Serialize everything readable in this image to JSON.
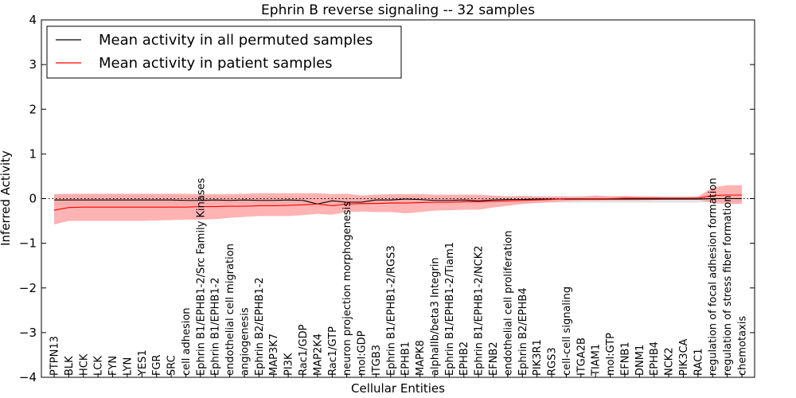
{
  "chart_data": {
    "type": "line",
    "title": "Ephrin B reverse signaling -- 32 samples",
    "xlabel": "Cellular Entities",
    "ylabel": "Inferred Activity",
    "ylim": [
      -4,
      4
    ],
    "yticks": [
      -4,
      -3,
      -2,
      -1,
      0,
      1,
      2,
      3,
      4
    ],
    "ytick_labels": [
      "−4",
      "−3",
      "−2",
      "−1",
      "0",
      "1",
      "2",
      "3",
      "4"
    ],
    "legend_position": "top-left",
    "categories": [
      "PTPN13",
      "BLK",
      "HCK",
      "LCK",
      "FYN",
      "LYN",
      "YES1",
      "FGR",
      "SRC",
      "cell adhesion",
      "Ephrin B1/EPHB1-2/Src Family Kinases",
      "Ephrin B1/EPHB1-2",
      "endothelial cell migration",
      "angiogenesis",
      "Ephrin B2/EPHB1-2",
      "MAP3K7",
      "PI3K",
      "Rac1/GDP",
      "MAP2K4",
      "Rac1/GTP",
      "neuron projection morphogenesis",
      "mol:GDP",
      "ITGB3",
      "Ephrin B1/EPHB1-2/RGS3",
      "EPHB1",
      "MAPK8",
      "alphaIIb/beta3 Integrin",
      "Ephrin B1/EPHB1-2/Tiam1",
      "EPHB2",
      "Ephrin B1/EPHB1-2/NCK2",
      "EFNB2",
      "endothelial cell proliferation",
      "Ephrin B2/EPHB4",
      "PIK3R1",
      "RGS3",
      "cell-cell signaling",
      "ITGA2B",
      "TIAM1",
      "mol:GTP",
      "EFNB1",
      "DNM1",
      "EPHB4",
      "NCK2",
      "PIK3CA",
      "RAC1",
      "regulation of focal adhesion formation",
      "regulation of stress fiber formation",
      "chemotaxis"
    ],
    "series": [
      {
        "name": "Mean activity in all permuted samples",
        "color": "#000000",
        "values": [
          -0.03,
          -0.03,
          -0.03,
          -0.03,
          -0.03,
          -0.03,
          -0.03,
          -0.03,
          -0.03,
          -0.04,
          -0.04,
          -0.03,
          -0.04,
          -0.03,
          -0.04,
          -0.04,
          -0.03,
          -0.04,
          -0.12,
          -0.05,
          -0.08,
          -0.08,
          -0.03,
          -0.03,
          -0.01,
          -0.02,
          -0.04,
          -0.04,
          -0.03,
          -0.05,
          -0.03,
          -0.02,
          -0.02,
          -0.01,
          -0.01,
          -0.01,
          -0.01,
          -0.01,
          -0.01,
          -0.01,
          -0.01,
          -0.01,
          -0.01,
          -0.01,
          -0.01,
          0.0,
          0.0,
          0.0
        ],
        "band_upper": [
          0.1,
          0.09,
          0.09,
          0.09,
          0.09,
          0.09,
          0.09,
          0.09,
          0.09,
          0.07,
          0.07,
          0.07,
          0.06,
          0.05,
          0.05,
          0.05,
          0.05,
          0.05,
          -0.02,
          0.03,
          0.01,
          0.02,
          0.04,
          0.05,
          0.06,
          0.05,
          0.04,
          0.04,
          0.05,
          0.04,
          0.05,
          0.05,
          0.06,
          0.06,
          0.06,
          0.06,
          0.06,
          0.06,
          0.06,
          0.06,
          0.06,
          0.06,
          0.06,
          0.06,
          0.06,
          0.06,
          0.06,
          0.06
        ],
        "band_lower": [
          -0.16,
          -0.15,
          -0.15,
          -0.15,
          -0.15,
          -0.15,
          -0.15,
          -0.15,
          -0.15,
          -0.15,
          -0.15,
          -0.14,
          -0.14,
          -0.12,
          -0.13,
          -0.13,
          -0.11,
          -0.12,
          -0.22,
          -0.13,
          -0.17,
          -0.17,
          -0.1,
          -0.1,
          -0.08,
          -0.09,
          -0.12,
          -0.12,
          -0.11,
          -0.13,
          -0.11,
          -0.1,
          -0.1,
          -0.09,
          -0.09,
          -0.09,
          -0.09,
          -0.09,
          -0.09,
          -0.09,
          -0.09,
          -0.09,
          -0.09,
          -0.09,
          -0.09,
          -0.07,
          -0.07,
          -0.07
        ]
      },
      {
        "name": "Mean activity in patient samples",
        "color": "#ff0000",
        "values": [
          -0.26,
          -0.2,
          -0.19,
          -0.19,
          -0.19,
          -0.19,
          -0.19,
          -0.19,
          -0.19,
          -0.19,
          -0.18,
          -0.18,
          -0.17,
          -0.17,
          -0.16,
          -0.16,
          -0.15,
          -0.14,
          -0.12,
          -0.16,
          -0.12,
          -0.11,
          -0.11,
          -0.1,
          -0.1,
          -0.09,
          -0.08,
          -0.08,
          -0.07,
          -0.07,
          -0.06,
          -0.05,
          -0.04,
          -0.03,
          -0.02,
          0.0,
          0.0,
          0.0,
          0.0,
          0.01,
          0.01,
          0.01,
          0.01,
          0.01,
          0.01,
          0.07,
          0.08,
          0.08
        ],
        "band_upper": [
          0.1,
          0.11,
          0.11,
          0.11,
          0.11,
          0.11,
          0.11,
          0.11,
          0.11,
          0.11,
          0.1,
          0.1,
          0.1,
          0.11,
          0.12,
          0.12,
          0.12,
          0.12,
          0.12,
          0.1,
          0.11,
          0.07,
          0.09,
          0.1,
          0.1,
          0.1,
          0.09,
          0.09,
          0.09,
          0.09,
          0.07,
          0.05,
          0.06,
          0.04,
          0.04,
          0.04,
          0.04,
          0.07,
          0.05,
          0.06,
          0.04,
          0.04,
          0.03,
          0.03,
          0.04,
          0.25,
          0.3,
          0.3
        ],
        "band_lower": [
          -0.58,
          -0.5,
          -0.5,
          -0.5,
          -0.5,
          -0.5,
          -0.5,
          -0.49,
          -0.48,
          -0.47,
          -0.47,
          -0.46,
          -0.43,
          -0.41,
          -0.39,
          -0.39,
          -0.39,
          -0.37,
          -0.34,
          -0.36,
          -0.3,
          -0.29,
          -0.3,
          -0.3,
          -0.33,
          -0.3,
          -0.27,
          -0.26,
          -0.25,
          -0.25,
          -0.2,
          -0.16,
          -0.12,
          -0.1,
          -0.08,
          -0.06,
          -0.05,
          -0.05,
          -0.04,
          -0.04,
          -0.04,
          -0.03,
          -0.02,
          -0.02,
          -0.02,
          -0.1,
          -0.12,
          -0.12
        ]
      }
    ]
  }
}
